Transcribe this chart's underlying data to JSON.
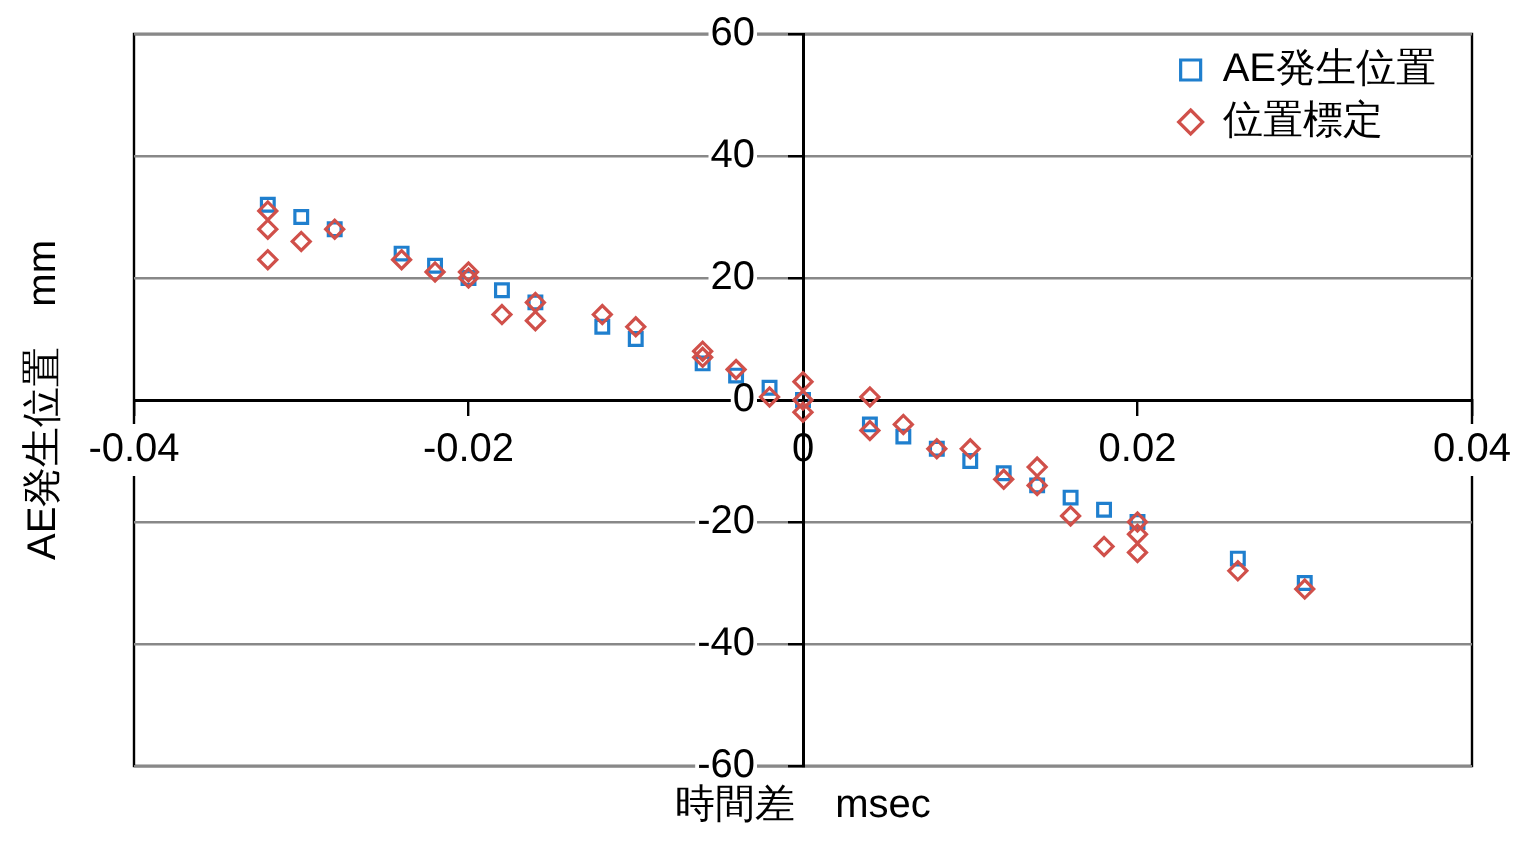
{
  "chart_data": {
    "type": "scatter",
    "xlabel": "時間差　msec",
    "ylabel": "AE発生位置　mm",
    "xlim": [
      -0.04,
      0.04
    ],
    "xticks": [
      -0.04,
      -0.02,
      0,
      0.02,
      0.04
    ],
    "ylim": [
      -60,
      60
    ],
    "yticks": [
      -60,
      -40,
      -20,
      0,
      20,
      40,
      60
    ],
    "grid": "y",
    "legend": "top right",
    "series": [
      {
        "name": "AE発生位置",
        "color": "#1f7fce",
        "marker": "square",
        "x": [
          -0.032,
          -0.03,
          -0.028,
          -0.024,
          -0.022,
          -0.02,
          -0.018,
          -0.016,
          -0.012,
          -0.01,
          -0.006,
          -0.004,
          -0.002,
          0,
          0.004,
          0.006,
          0.008,
          0.01,
          0.012,
          0.014,
          0.016,
          0.018,
          0.02,
          0.026,
          0.03
        ],
        "values": [
          32,
          30,
          28,
          24,
          22,
          20,
          18,
          16,
          12,
          10,
          6,
          4,
          2,
          0,
          -4,
          -6,
          -8,
          -10,
          -12,
          -14,
          -16,
          -18,
          -20,
          -26,
          -30
        ]
      },
      {
        "name": "位置標定",
        "color": "#d0504a",
        "marker": "diamond",
        "x": [
          -0.032,
          -0.032,
          -0.032,
          -0.03,
          -0.028,
          -0.024,
          -0.022,
          -0.02,
          -0.02,
          -0.018,
          -0.016,
          -0.016,
          -0.012,
          -0.01,
          -0.006,
          -0.006,
          -0.004,
          -0.002,
          0,
          0,
          0,
          0.004,
          0.004,
          0.006,
          0.008,
          0.01,
          0.012,
          0.014,
          0.014,
          0.016,
          0.018,
          0.02,
          0.02,
          0.02,
          0.026,
          0.03
        ],
        "values": [
          31,
          28,
          23,
          26,
          28,
          23,
          21,
          21,
          20,
          14,
          16,
          13,
          14,
          12,
          8,
          7,
          5,
          0.5,
          3,
          0,
          -2,
          0.5,
          -5,
          -4,
          -8,
          -8,
          -13,
          -11,
          -14,
          -19,
          -24,
          -20,
          -22,
          -25,
          -28,
          -31
        ]
      }
    ]
  }
}
